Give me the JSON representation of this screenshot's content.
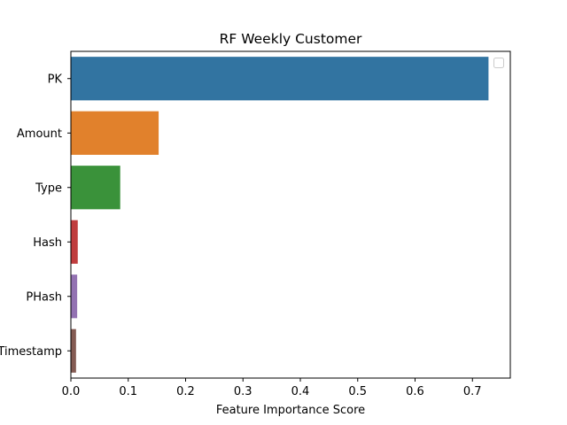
{
  "chart_data": {
    "type": "bar",
    "orientation": "horizontal",
    "title": "RF Weekly Customer",
    "xlabel": "Feature Importance Score",
    "ylabel": "",
    "categories": [
      "PK",
      "Amount",
      "Type",
      "Hash",
      "PHash",
      "Timestamp"
    ],
    "values": [
      0.728,
      0.153,
      0.086,
      0.012,
      0.011,
      0.009
    ],
    "colors": [
      "#3274a1",
      "#e1812c",
      "#3a923a",
      "#c03d3e",
      "#9372b2",
      "#845b53"
    ],
    "xlim": [
      0,
      0.766
    ],
    "xticks": [
      0.0,
      0.1,
      0.2,
      0.3,
      0.4,
      0.5,
      0.6,
      0.7
    ],
    "xtick_labels": [
      "0.0",
      "0.1",
      "0.2",
      "0.3",
      "0.4",
      "0.5",
      "0.6",
      "0.7"
    ],
    "grid": false,
    "legend": {
      "placement": "top-right",
      "entries": []
    }
  }
}
